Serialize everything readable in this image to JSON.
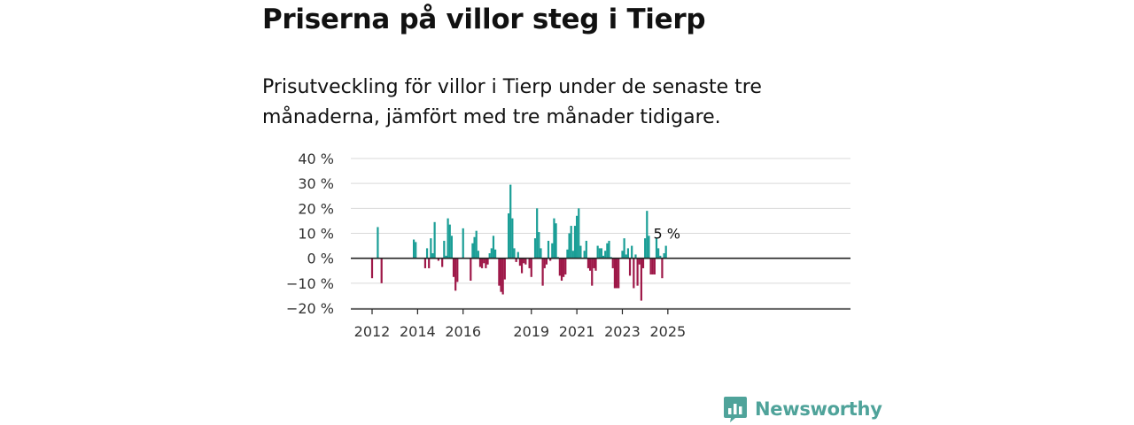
{
  "title": "Priserna på villor steg i Tierp",
  "subtitle": "Prisutveckling för villor i Tierp under de senaste tre månaderna, jämfört med tre månader tidigare.",
  "brand": "Newsworthy",
  "colors": {
    "positive": "#1a9e96",
    "negative": "#9e1848",
    "brand": "#4fa39a",
    "grid": "#d9d9d9",
    "axis": "#222222"
  },
  "chart_data": {
    "type": "bar",
    "ylim": [
      -20,
      40
    ],
    "y_ticks": [
      40,
      30,
      20,
      10,
      0,
      -10,
      -20
    ],
    "y_tick_labels": [
      "40 %",
      "30 %",
      "20 %",
      "10 %",
      "0 %",
      "−10 %",
      "−20 %"
    ],
    "x_ticks": [
      "2012",
      "2014",
      "2016",
      "2019",
      "2021",
      "2023",
      "2025"
    ],
    "last_value_label": "5 %",
    "grid": true,
    "bars": [
      {
        "x": "2012-01",
        "y": -8
      },
      {
        "x": "2012-04",
        "y": 12.5
      },
      {
        "x": "2012-06",
        "y": -10
      },
      {
        "x": "2013-11",
        "y": 7.5
      },
      {
        "x": "2013-12",
        "y": 6.5
      },
      {
        "x": "2014-05",
        "y": -4
      },
      {
        "x": "2014-06",
        "y": 4
      },
      {
        "x": "2014-07",
        "y": -4
      },
      {
        "x": "2014-08",
        "y": 8
      },
      {
        "x": "2014-09",
        "y": 2
      },
      {
        "x": "2014-10",
        "y": 14.5
      },
      {
        "x": "2014-12",
        "y": -1
      },
      {
        "x": "2015-02",
        "y": -3.5
      },
      {
        "x": "2015-03",
        "y": 7
      },
      {
        "x": "2015-04",
        "y": 1
      },
      {
        "x": "2015-05",
        "y": 16
      },
      {
        "x": "2015-06",
        "y": 13.5
      },
      {
        "x": "2015-07",
        "y": 9
      },
      {
        "x": "2015-08",
        "y": -7.5
      },
      {
        "x": "2015-09",
        "y": -13
      },
      {
        "x": "2015-10",
        "y": -9.5
      },
      {
        "x": "2016-01",
        "y": 12
      },
      {
        "x": "2016-05",
        "y": -9
      },
      {
        "x": "2016-06",
        "y": 6
      },
      {
        "x": "2016-07",
        "y": 8.5
      },
      {
        "x": "2016-08",
        "y": 11
      },
      {
        "x": "2016-09",
        "y": 3
      },
      {
        "x": "2016-10",
        "y": -3.5
      },
      {
        "x": "2016-11",
        "y": -4
      },
      {
        "x": "2016-12",
        "y": -2
      },
      {
        "x": "2017-01",
        "y": -4
      },
      {
        "x": "2017-02",
        "y": -2.5
      },
      {
        "x": "2017-03",
        "y": 2
      },
      {
        "x": "2017-04",
        "y": 4
      },
      {
        "x": "2017-05",
        "y": 9
      },
      {
        "x": "2017-06",
        "y": 3.5
      },
      {
        "x": "2017-08",
        "y": -11
      },
      {
        "x": "2017-09",
        "y": -13.5
      },
      {
        "x": "2017-10",
        "y": -14.5
      },
      {
        "x": "2017-11",
        "y": -8.5
      },
      {
        "x": "2018-01",
        "y": 18
      },
      {
        "x": "2018-02",
        "y": 29.5
      },
      {
        "x": "2018-03",
        "y": 16
      },
      {
        "x": "2018-04",
        "y": 4
      },
      {
        "x": "2018-05",
        "y": -1.5
      },
      {
        "x": "2018-06",
        "y": 2.5
      },
      {
        "x": "2018-07",
        "y": -3
      },
      {
        "x": "2018-08",
        "y": -6
      },
      {
        "x": "2018-09",
        "y": -2
      },
      {
        "x": "2018-10",
        "y": -2.5
      },
      {
        "x": "2018-12",
        "y": -4
      },
      {
        "x": "2019-01",
        "y": -7.5
      },
      {
        "x": "2019-03",
        "y": 8
      },
      {
        "x": "2019-04",
        "y": 20
      },
      {
        "x": "2019-05",
        "y": 10.5
      },
      {
        "x": "2019-06",
        "y": 4
      },
      {
        "x": "2019-07",
        "y": -11
      },
      {
        "x": "2019-08",
        "y": -4
      },
      {
        "x": "2019-09",
        "y": -2.5
      },
      {
        "x": "2019-10",
        "y": 7
      },
      {
        "x": "2019-11",
        "y": -1
      },
      {
        "x": "2019-12",
        "y": 6
      },
      {
        "x": "2020-01",
        "y": 16
      },
      {
        "x": "2020-02",
        "y": 14
      },
      {
        "x": "2020-03",
        "y": 0.5
      },
      {
        "x": "2020-04",
        "y": -7
      },
      {
        "x": "2020-05",
        "y": -9
      },
      {
        "x": "2020-06",
        "y": -7.5
      },
      {
        "x": "2020-07",
        "y": -6.5
      },
      {
        "x": "2020-08",
        "y": 3.5
      },
      {
        "x": "2020-09",
        "y": 10
      },
      {
        "x": "2020-10",
        "y": 13
      },
      {
        "x": "2020-11",
        "y": 3
      },
      {
        "x": "2020-12",
        "y": 13
      },
      {
        "x": "2021-01",
        "y": 17
      },
      {
        "x": "2021-02",
        "y": 20
      },
      {
        "x": "2021-03",
        "y": 5
      },
      {
        "x": "2021-05",
        "y": 3
      },
      {
        "x": "2021-06",
        "y": 7
      },
      {
        "x": "2021-07",
        "y": -4
      },
      {
        "x": "2021-08",
        "y": -5
      },
      {
        "x": "2021-09",
        "y": -11
      },
      {
        "x": "2021-10",
        "y": -4
      },
      {
        "x": "2021-11",
        "y": -5
      },
      {
        "x": "2021-12",
        "y": 5
      },
      {
        "x": "2022-01",
        "y": 4
      },
      {
        "x": "2022-02",
        "y": 4
      },
      {
        "x": "2022-03",
        "y": 1
      },
      {
        "x": "2022-04",
        "y": 3
      },
      {
        "x": "2022-05",
        "y": 6
      },
      {
        "x": "2022-06",
        "y": 7
      },
      {
        "x": "2022-07",
        "y": 0.5
      },
      {
        "x": "2022-08",
        "y": -4
      },
      {
        "x": "2022-09",
        "y": -12
      },
      {
        "x": "2022-10",
        "y": -12
      },
      {
        "x": "2022-11",
        "y": -12
      },
      {
        "x": "2023-01",
        "y": 3
      },
      {
        "x": "2023-02",
        "y": 8
      },
      {
        "x": "2023-03",
        "y": 1.5
      },
      {
        "x": "2023-04",
        "y": 4
      },
      {
        "x": "2023-05",
        "y": -7
      },
      {
        "x": "2023-06",
        "y": 5
      },
      {
        "x": "2023-07",
        "y": -12
      },
      {
        "x": "2023-08",
        "y": 1.5
      },
      {
        "x": "2023-09",
        "y": -11
      },
      {
        "x": "2023-10",
        "y": -2.5
      },
      {
        "x": "2023-11",
        "y": -17
      },
      {
        "x": "2023-12",
        "y": -4
      },
      {
        "x": "2024-01",
        "y": 8
      },
      {
        "x": "2024-02",
        "y": 19
      },
      {
        "x": "2024-03",
        "y": 9
      },
      {
        "x": "2024-04",
        "y": -6.5
      },
      {
        "x": "2024-05",
        "y": -6.5
      },
      {
        "x": "2024-06",
        "y": -6.5
      },
      {
        "x": "2024-07",
        "y": 8
      },
      {
        "x": "2024-08",
        "y": 4
      },
      {
        "x": "2024-09",
        "y": 1
      },
      {
        "x": "2024-10",
        "y": -8
      },
      {
        "x": "2024-11",
        "y": 2
      },
      {
        "x": "2024-12",
        "y": 5
      }
    ]
  }
}
